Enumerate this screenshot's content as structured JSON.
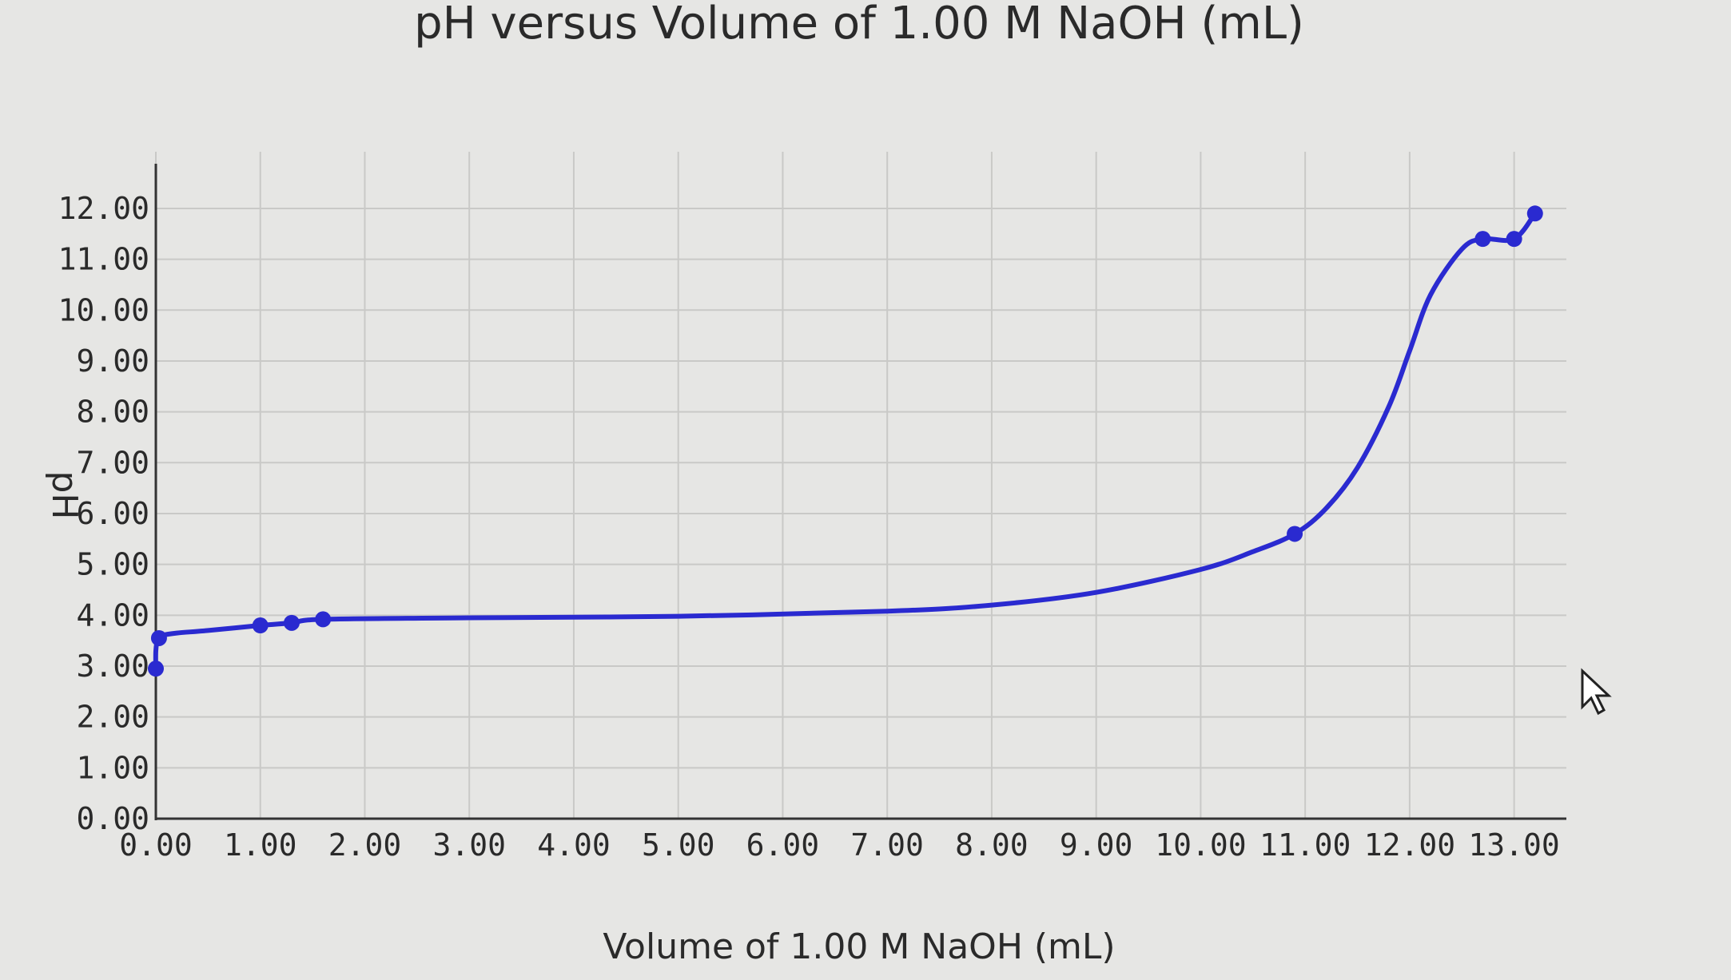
{
  "chart_data": {
    "type": "line",
    "title": "pH versus Volume of 1.00 M NaOH (mL)",
    "xlabel": "Volume of 1.00 M NaOH (mL)",
    "ylabel": "pH",
    "xlim": [
      0,
      13.5
    ],
    "ylim": [
      0,
      12.8
    ],
    "x_ticks": [
      0,
      1,
      2,
      3,
      4,
      5,
      6,
      7,
      8,
      9,
      10,
      11,
      12,
      13
    ],
    "x_tick_labels": [
      "0.00",
      "1.00",
      "2.00",
      "3.00",
      "4.00",
      "5.00",
      "6.00",
      "7.00",
      "8.00",
      "9.00",
      "10.00",
      "11.00",
      "12.00",
      "13.00"
    ],
    "y_ticks": [
      0,
      1,
      2,
      3,
      4,
      5,
      6,
      7,
      8,
      9,
      10,
      11,
      12
    ],
    "y_tick_labels": [
      "0.00",
      "1.00",
      "2.00",
      "3.00",
      "4.00",
      "5.00",
      "6.00",
      "7.00",
      "8.00",
      "9.00",
      "10.00",
      "11.00",
      "12.00"
    ],
    "grid": true,
    "color": "#2a2ad0",
    "series": [
      {
        "x": [
          0.0,
          0.0,
          0.02,
          0.05,
          0.2,
          0.5,
          1.0,
          1.3,
          1.6,
          3.0,
          5.0,
          7.0,
          8.0,
          9.0,
          10.0,
          10.5,
          10.9,
          11.2,
          11.5,
          11.8,
          12.0,
          12.2,
          12.5,
          12.7,
          13.0,
          13.2
        ],
        "y": [
          2.9,
          3.3,
          3.55,
          3.6,
          3.65,
          3.7,
          3.8,
          3.85,
          3.92,
          3.95,
          3.98,
          4.08,
          4.2,
          4.45,
          4.9,
          5.25,
          5.6,
          6.1,
          6.9,
          8.1,
          9.2,
          10.3,
          11.2,
          11.4,
          11.4,
          11.9
        ],
        "markers_x": [
          0.0,
          0.03,
          1.0,
          1.3,
          1.6,
          10.9,
          12.7,
          13.0,
          13.2
        ],
        "markers_y": [
          2.95,
          3.55,
          3.8,
          3.85,
          3.92,
          5.6,
          11.4,
          11.4,
          11.9
        ]
      }
    ]
  }
}
